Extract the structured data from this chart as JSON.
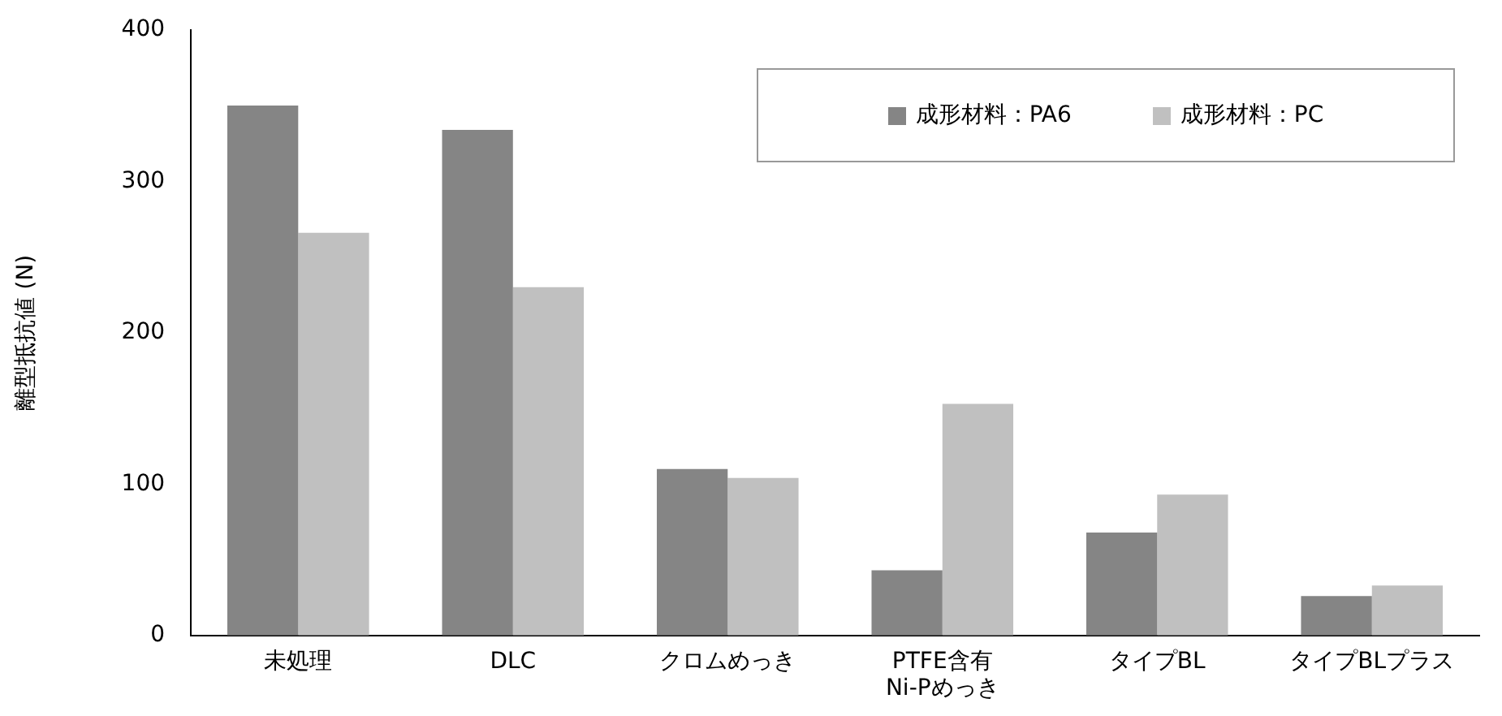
{
  "chart_data": {
    "type": "bar",
    "ylabel": "離型抵抗値 (N)",
    "categories": [
      "未処理",
      "DLC",
      "クロムめっき",
      "PTFE含有\nNi-Pめっき",
      "タイプBL",
      "タイプBLプラス"
    ],
    "series": [
      {
        "name": "成形材料：PA6",
        "color": "#858585",
        "values": [
          350,
          334,
          110,
          43,
          68,
          26
        ]
      },
      {
        "name": "成形材料：PC",
        "color": "#c0c0c0",
        "values": [
          266,
          230,
          104,
          153,
          93,
          33
        ]
      }
    ],
    "ylim": [
      0,
      400
    ],
    "yticks": [
      0,
      100,
      200,
      300,
      400
    ],
    "grid": false,
    "legend": "top right"
  }
}
